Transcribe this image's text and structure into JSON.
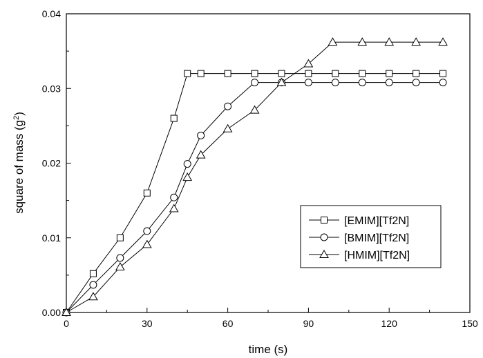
{
  "chart_data": {
    "type": "line",
    "xlabel": "time (s)",
    "ylabel": {
      "prefix": "square of mass (g",
      "sup": "2",
      "suffix": ")"
    },
    "xlim": [
      0,
      150
    ],
    "ylim": [
      0,
      0.04
    ],
    "xticks": [
      0,
      30,
      60,
      90,
      120,
      150
    ],
    "yticks": [
      0.0,
      0.01,
      0.02,
      0.03,
      0.04
    ],
    "xtick_labels": [
      "0",
      "30",
      "60",
      "90",
      "120",
      "150"
    ],
    "ytick_labels": [
      "0.00",
      "0.01",
      "0.02",
      "0.03",
      "0.04"
    ],
    "grid": false,
    "legend_position": "center-right",
    "series": [
      {
        "name": "[EMIM][Tf2N]",
        "marker": "square",
        "x": [
          0,
          10,
          20,
          30,
          40,
          45,
          50,
          60,
          70,
          80,
          90,
          100,
          110,
          120,
          130,
          140
        ],
        "y": [
          0.0,
          0.0052,
          0.01,
          0.016,
          0.026,
          0.032,
          0.032,
          0.032,
          0.032,
          0.032,
          0.032,
          0.032,
          0.032,
          0.032,
          0.032,
          0.032
        ]
      },
      {
        "name": "[BMIM][Tf2N]",
        "marker": "circle",
        "x": [
          0,
          10,
          20,
          30,
          40,
          45,
          50,
          60,
          70,
          80,
          90,
          100,
          110,
          120,
          130,
          140
        ],
        "y": [
          0.0,
          0.0037,
          0.0073,
          0.0109,
          0.0154,
          0.0199,
          0.0237,
          0.0276,
          0.0308,
          0.0308,
          0.0308,
          0.0308,
          0.0308,
          0.0308,
          0.0308,
          0.0308
        ]
      },
      {
        "name": "[HMIM][Tf2N]",
        "marker": "triangle",
        "x": [
          0,
          10,
          20,
          30,
          40,
          45,
          50,
          60,
          70,
          80,
          90,
          99,
          110,
          120,
          130,
          140
        ],
        "y": [
          0.0,
          0.0021,
          0.0061,
          0.0091,
          0.0139,
          0.0181,
          0.0211,
          0.0246,
          0.0271,
          0.0308,
          0.0333,
          0.0362,
          0.0362,
          0.0362,
          0.0362,
          0.0362
        ]
      }
    ]
  }
}
